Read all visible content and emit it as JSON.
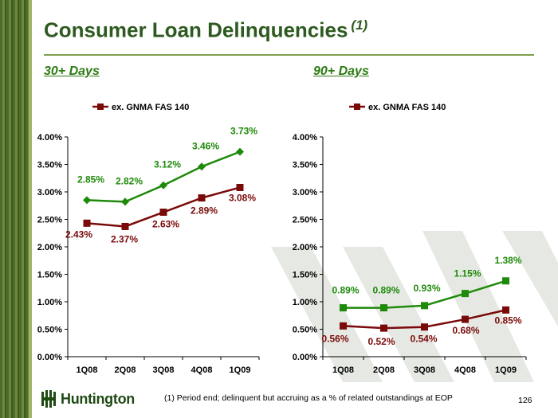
{
  "title": "Consumer Loan Delinquencies",
  "title_note": "(1)",
  "footnote": "(1) Period end; delinquent but accruing as a % of related outstandings at EOP",
  "page_number": "126",
  "logo_text": "Huntington",
  "colors": {
    "green": "#1e8a0a",
    "dark_red": "#7a0a0a",
    "title_green": "#2d5a1f"
  },
  "chart_data": [
    {
      "type": "line",
      "subtitle": "30+ Days",
      "categories": [
        "1Q08",
        "2Q08",
        "3Q08",
        "4Q08",
        "1Q09"
      ],
      "ylim": [
        0,
        4
      ],
      "yticks": [
        "0.00%",
        "0.50%",
        "1.00%",
        "1.50%",
        "2.00%",
        "2.50%",
        "3.00%",
        "3.50%",
        "4.00%"
      ],
      "legend_position": "top",
      "series": [
        {
          "name": "",
          "color": "#1e8a0a",
          "marker": "diamond",
          "values": [
            2.85,
            2.82,
            3.12,
            3.46,
            3.73
          ],
          "labels": [
            "2.85%",
            "2.82%",
            "3.12%",
            "3.46%",
            "3.73%"
          ]
        },
        {
          "name": "ex. GNMA FAS 140",
          "color": "#7a0a0a",
          "marker": "square",
          "values": [
            2.43,
            2.37,
            2.63,
            2.89,
            3.08
          ],
          "labels": [
            "2.43%",
            "2.37%",
            "2.63%",
            "2.89%",
            "3.08%"
          ]
        }
      ]
    },
    {
      "type": "line",
      "subtitle": "90+ Days",
      "categories": [
        "1Q08",
        "2Q08",
        "3Q08",
        "4Q08",
        "1Q09"
      ],
      "ylim": [
        0,
        4
      ],
      "yticks": [
        "0.00%",
        "0.50%",
        "1.00%",
        "1.50%",
        "2.00%",
        "2.50%",
        "3.00%",
        "3.50%",
        "4.00%"
      ],
      "legend_position": "top",
      "series": [
        {
          "name": "",
          "color": "#1e8a0a",
          "marker": "square",
          "values": [
            0.89,
            0.89,
            0.93,
            1.15,
            1.38
          ],
          "labels": [
            "0.89%",
            "0.89%",
            "0.93%",
            "1.15%",
            "1.38%"
          ]
        },
        {
          "name": "ex. GNMA FAS 140",
          "color": "#7a0a0a",
          "marker": "square",
          "values": [
            0.56,
            0.52,
            0.54,
            0.68,
            0.85
          ],
          "labels": [
            "0.56%",
            "0.52%",
            "0.54%",
            "0.68%",
            "0.85%"
          ]
        }
      ]
    }
  ]
}
